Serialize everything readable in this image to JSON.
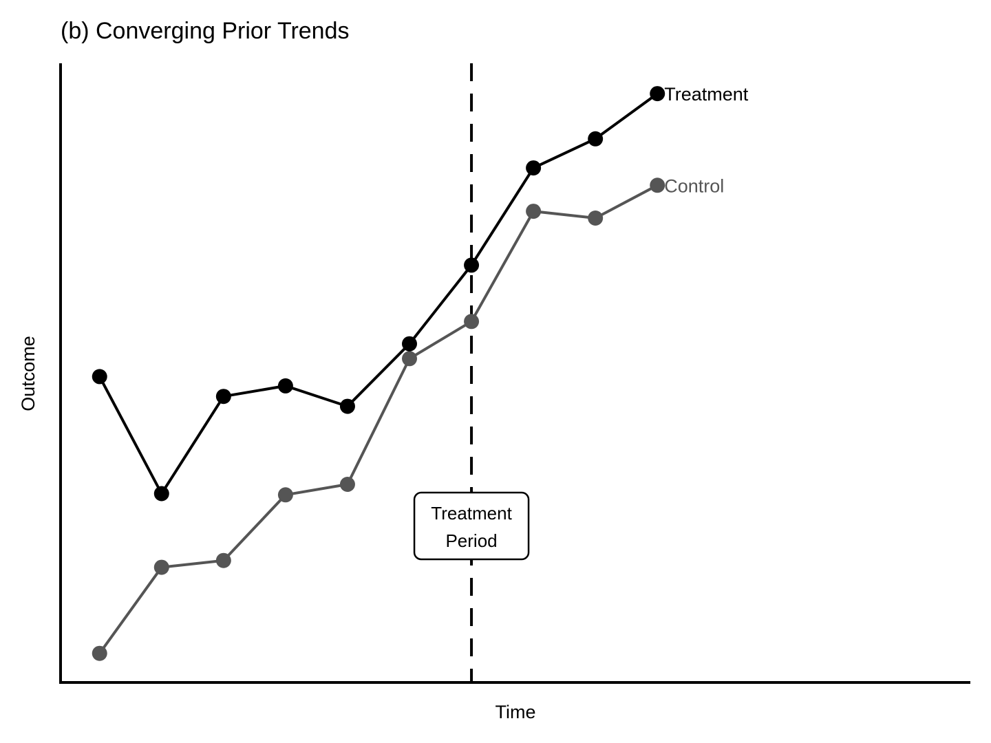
{
  "chart_data": {
    "type": "line",
    "title": "(b) Converging Prior Trends",
    "xlabel": "Time",
    "ylabel": "Outcome",
    "x": [
      1,
      2,
      3,
      4,
      5,
      6,
      7,
      8,
      9,
      10
    ],
    "xlim": [
      0.37,
      15.05
    ],
    "ylim": [
      0,
      100
    ],
    "grid": false,
    "series": [
      {
        "name": "Treatment",
        "color": "#000000",
        "values": [
          49.4,
          30.5,
          46.2,
          47.9,
          44.6,
          54.7,
          67.4,
          83.1,
          87.8,
          95.1
        ]
      },
      {
        "name": "Control",
        "color": "#555555",
        "values": [
          4.7,
          18.6,
          19.7,
          30.3,
          32.0,
          52.3,
          58.3,
          76.1,
          75.0,
          80.3
        ]
      }
    ],
    "annotation": {
      "text_line1": "Treatment",
      "text_line2": "Period",
      "x": 7
    }
  }
}
